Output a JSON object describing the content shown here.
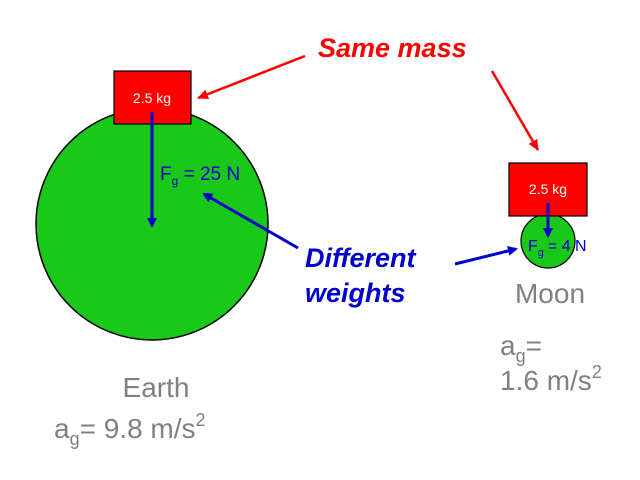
{
  "callouts": {
    "same_mass": "Same mass",
    "different_line1": "Different",
    "different_line2": "weights"
  },
  "earth": {
    "mass_label": "2.5 kg",
    "force_F": "F",
    "force_sub": "g",
    "force_value": " = 25 N",
    "name": "Earth",
    "accel_a": "a",
    "accel_sub": "g",
    "accel_value": "= 9.8 m/s",
    "accel_sup": "2"
  },
  "moon": {
    "mass_label": "2.5 kg",
    "force_F": "F",
    "force_sub": "g",
    "force_value": "= 4 N",
    "name": "Moon",
    "accel_a": "a",
    "accel_sub": "g",
    "accel_eq": "=",
    "accel_value": "1.6 m/s",
    "accel_sup": "2"
  },
  "colors": {
    "planet_fill": "#19c819",
    "block_fill": "#ff0000",
    "force_color": "#0000cc",
    "callout_red": "#ff0000",
    "label_gray": "#808080"
  }
}
